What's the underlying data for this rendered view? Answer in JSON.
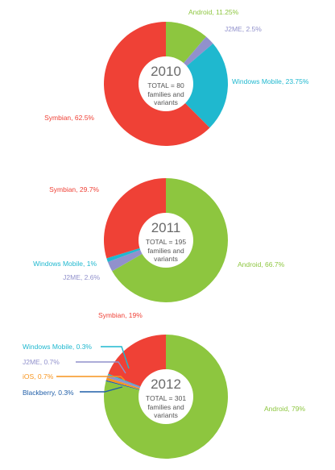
{
  "colors": {
    "Android": "#8dc63f",
    "Symbian": "#ef4136",
    "J2ME": "#9191cc",
    "Windows Mobile": "#1fb8cf",
    "iOS": "#f7941d",
    "Blackberry": "#1f5ea8"
  },
  "chart_data": [
    {
      "type": "pie",
      "title": "2010",
      "total_label": "TOTAL = 80",
      "subtitle_lines": [
        "families and",
        "variants"
      ],
      "slices": [
        {
          "name": "Android",
          "value": 11.25,
          "label": "Android, 11.25%"
        },
        {
          "name": "J2ME",
          "value": 2.5,
          "label": "J2ME, 2.5%"
        },
        {
          "name": "Windows Mobile",
          "value": 23.75,
          "label": "Windows Mobile, 23.75%"
        },
        {
          "name": "Symbian",
          "value": 62.5,
          "label": "Symbian, 62.5%"
        }
      ]
    },
    {
      "type": "pie",
      "title": "2011",
      "total_label": "TOTAL = 195",
      "subtitle_lines": [
        "families and",
        "variants"
      ],
      "slices": [
        {
          "name": "Android",
          "value": 66.7,
          "label": "Android, 66.7%"
        },
        {
          "name": "J2ME",
          "value": 2.6,
          "label": "J2ME, 2.6%"
        },
        {
          "name": "Windows Mobile",
          "value": 1,
          "label": "Windows Mobile, 1%"
        },
        {
          "name": "Symbian",
          "value": 29.7,
          "label": "Symbian, 29.7%"
        }
      ]
    },
    {
      "type": "pie",
      "title": "2012",
      "total_label": "TOTAL = 301",
      "subtitle_lines": [
        "families and",
        "variants"
      ],
      "slices": [
        {
          "name": "Android",
          "value": 79,
          "label": "Android, 79%"
        },
        {
          "name": "Blackberry",
          "value": 0.3,
          "label": "Blackberry, 0.3%"
        },
        {
          "name": "iOS",
          "value": 0.7,
          "label": "iOS, 0.7%"
        },
        {
          "name": "J2ME",
          "value": 0.7,
          "label": "J2ME, 0.7%"
        },
        {
          "name": "Windows Mobile",
          "value": 0.3,
          "label": "Windows Mobile, 0.3%"
        },
        {
          "name": "Symbian",
          "value": 19,
          "label": "Symbian, 19%"
        }
      ]
    }
  ]
}
